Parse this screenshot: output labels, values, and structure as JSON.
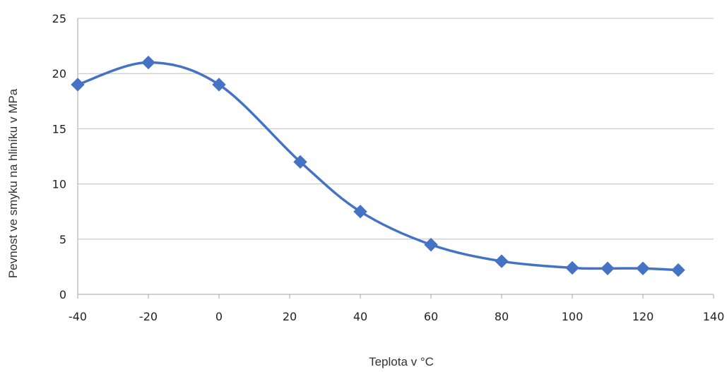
{
  "chart_data": {
    "type": "line",
    "title": "",
    "xlabel": "Teplota v °C",
    "ylabel": "Pevnost ve smyku na hliníku v MPa",
    "xlim": [
      -40,
      140
    ],
    "ylim": [
      0,
      25
    ],
    "x_ticks": [
      "-40",
      "-20",
      "0",
      "20",
      "40",
      "60",
      "80",
      "100",
      "120",
      "140"
    ],
    "y_ticks": [
      "0",
      "5",
      "10",
      "15",
      "20",
      "25"
    ],
    "grid": "horizontal",
    "legend": "none",
    "line_style": "smoothed",
    "marker": "diamond",
    "series": [
      {
        "x": [
          -40,
          -20,
          0,
          23,
          40,
          60,
          80,
          100,
          110,
          120,
          130
        ],
        "y": [
          19,
          21,
          19,
          12,
          7.5,
          4.5,
          3.0,
          2.4,
          2.35,
          2.35,
          2.2
        ]
      }
    ],
    "colors": {
      "series": "#4472c4",
      "grid": "#bfbfbf",
      "axis": "#a6a6a6"
    }
  }
}
